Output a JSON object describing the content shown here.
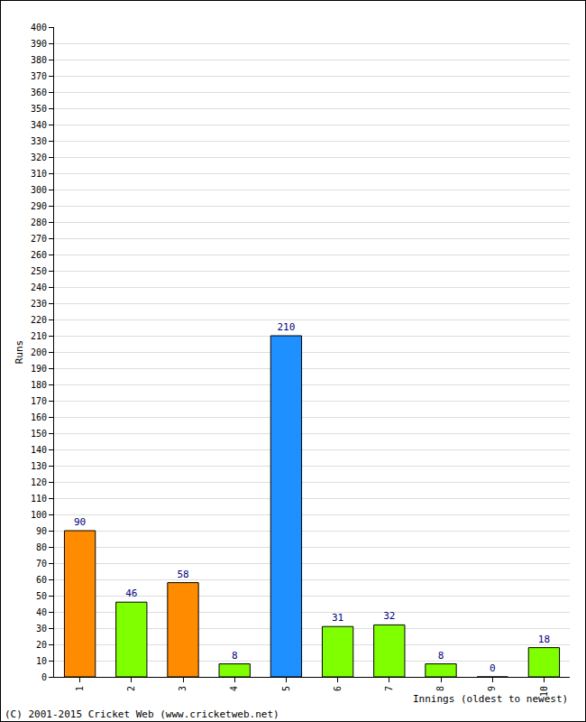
{
  "chart_data": {
    "type": "bar",
    "categories": [
      "1",
      "2",
      "3",
      "4",
      "5",
      "6",
      "7",
      "8",
      "9",
      "10"
    ],
    "values": [
      90,
      46,
      58,
      8,
      210,
      31,
      32,
      8,
      0,
      18
    ],
    "colors": [
      "#ff8c00",
      "#7fff00",
      "#ff8c00",
      "#7fff00",
      "#1e90ff",
      "#7fff00",
      "#7fff00",
      "#7fff00",
      "#7fff00",
      "#7fff00"
    ],
    "ylim": [
      0,
      400
    ],
    "yticks": [
      0,
      10,
      20,
      30,
      40,
      50,
      60,
      70,
      80,
      90,
      100,
      110,
      120,
      130,
      140,
      150,
      160,
      170,
      180,
      190,
      200,
      210,
      220,
      230,
      240,
      250,
      260,
      270,
      280,
      290,
      300,
      310,
      320,
      330,
      340,
      350,
      360,
      370,
      380,
      390,
      400
    ],
    "grid": true,
    "data_labels": true,
    "xlabel": "Innings (oldest to newest)",
    "ylabel": "Runs",
    "footer": "(C) 2001-2015 Cricket Web (www.cricketweb.net)"
  }
}
